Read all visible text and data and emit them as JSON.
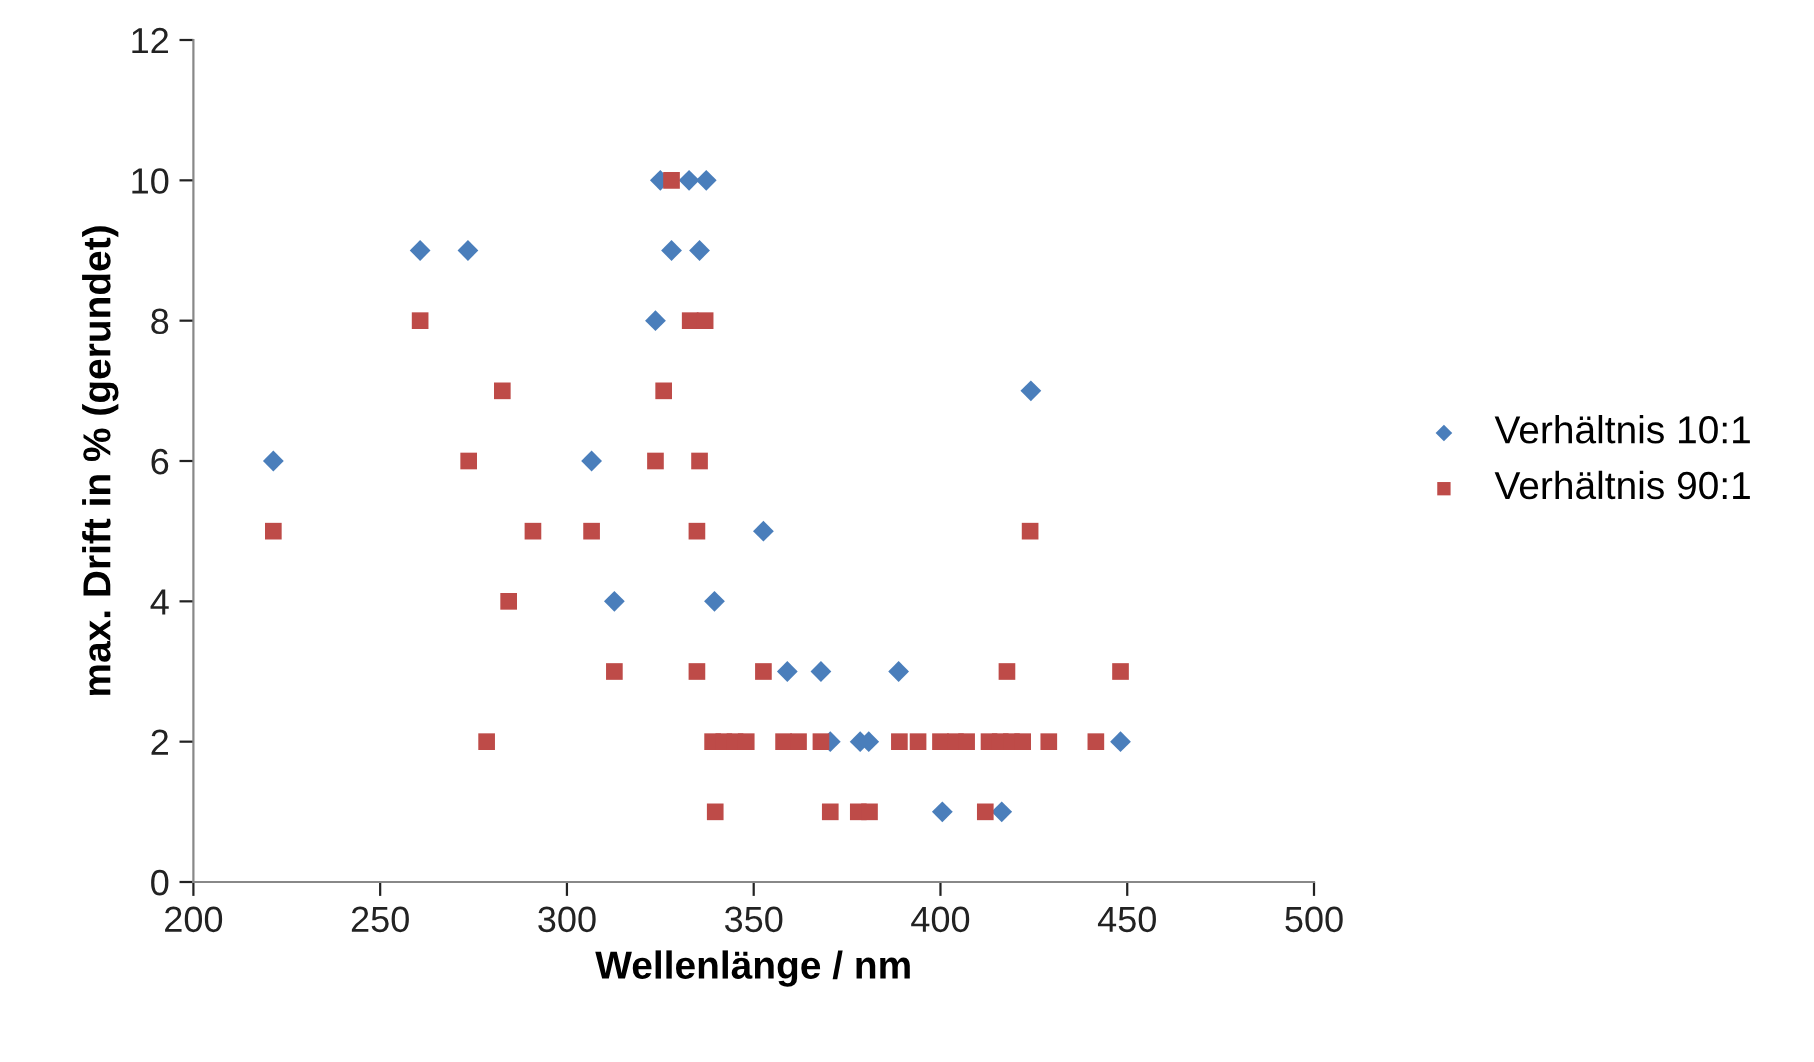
{
  "chart_data": {
    "type": "scatter",
    "xlabel": "Wellenlänge / nm",
    "ylabel": "max. Drift in % (gerundet)",
    "xlim": [
      200,
      500
    ],
    "xticks": [
      200,
      250,
      300,
      350,
      400,
      450,
      500
    ],
    "ylim": [
      0,
      12
    ],
    "yticks": [
      0,
      2,
      4,
      6,
      8,
      10,
      12
    ],
    "grid": false,
    "legend": "right",
    "series": [
      {
        "name": "Verhältnis 10:1",
        "color": "#4a7ebb",
        "marker": "diamond",
        "x": [
          221.4,
          260.7,
          273.5,
          306.6,
          312.7,
          323.7,
          325,
          328,
          332.7,
          334.6,
          335.5,
          337.3,
          339.5,
          352.6,
          359,
          368,
          370.5,
          378.5,
          380.8,
          388.8,
          400.5,
          416.4,
          424.2,
          448.2
        ],
        "values": [
          6,
          9,
          9,
          6,
          4,
          8,
          10,
          9,
          10,
          null,
          9,
          10,
          4,
          5,
          3,
          3,
          2,
          2,
          2,
          3,
          1,
          1,
          7,
          2
        ]
      },
      {
        "name": "Verhältnis 90:1",
        "color": "#be4b48",
        "marker": "square",
        "x": [
          221.4,
          260.7,
          273.7,
          278.5,
          282.7,
          284.4,
          290.9,
          306.6,
          312.7,
          323.7,
          325.9,
          328,
          333,
          334.8,
          334.8,
          335.5,
          337,
          339,
          339.7,
          342,
          345,
          348,
          352.6,
          358,
          362,
          368,
          370.5,
          378,
          381,
          389,
          394,
          400,
          404,
          407,
          412,
          413,
          416,
          417.8,
          419,
          422,
          424,
          429,
          441.6,
          448.2
        ],
        "values": [
          5,
          8,
          6,
          2,
          7,
          4,
          5,
          5,
          3,
          6,
          7,
          10,
          8,
          5,
          3,
          6,
          8,
          2,
          1,
          2,
          2,
          2,
          3,
          2,
          2,
          2,
          1,
          1,
          1,
          2,
          2,
          2,
          2,
          2,
          1,
          2,
          2,
          3,
          2,
          2,
          5,
          2,
          2,
          3
        ]
      }
    ]
  }
}
